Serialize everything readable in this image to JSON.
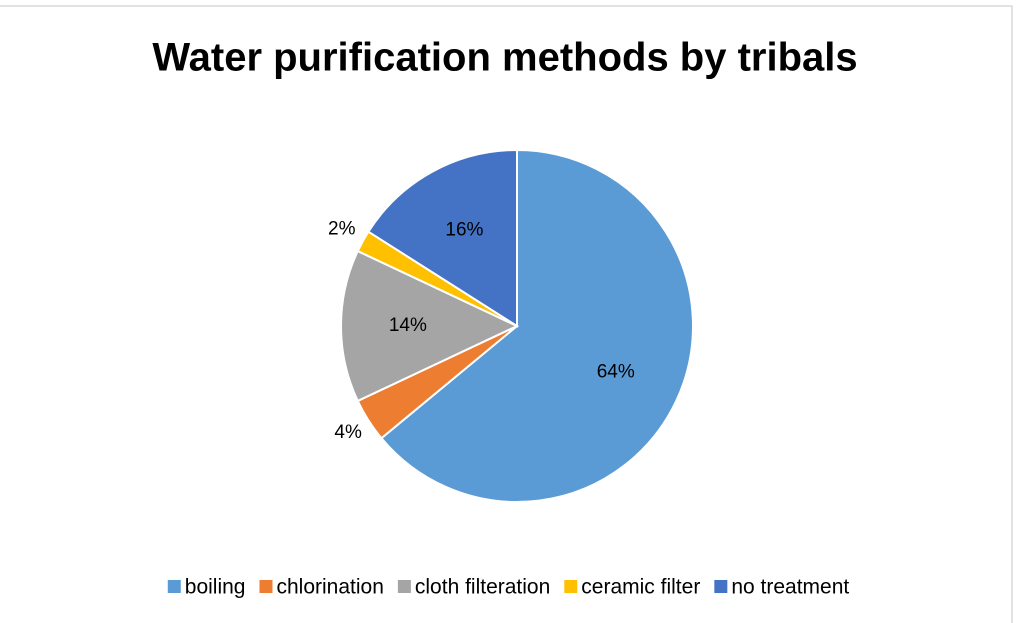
{
  "chart_data": {
    "type": "pie",
    "title": "Water purification methods by tribals",
    "categories": [
      "boiling",
      "chlorination",
      "cloth filteration",
      "ceramic filter",
      "no treatment"
    ],
    "values": [
      64,
      4,
      14,
      2,
      16
    ],
    "value_labels": [
      "64%",
      "4%",
      "14%",
      "2%",
      "16%"
    ],
    "colors": [
      "#5b9bd5",
      "#ed7d31",
      "#a5a5a5",
      "#ffc000",
      "#4472c4"
    ],
    "legend": "bottom"
  }
}
